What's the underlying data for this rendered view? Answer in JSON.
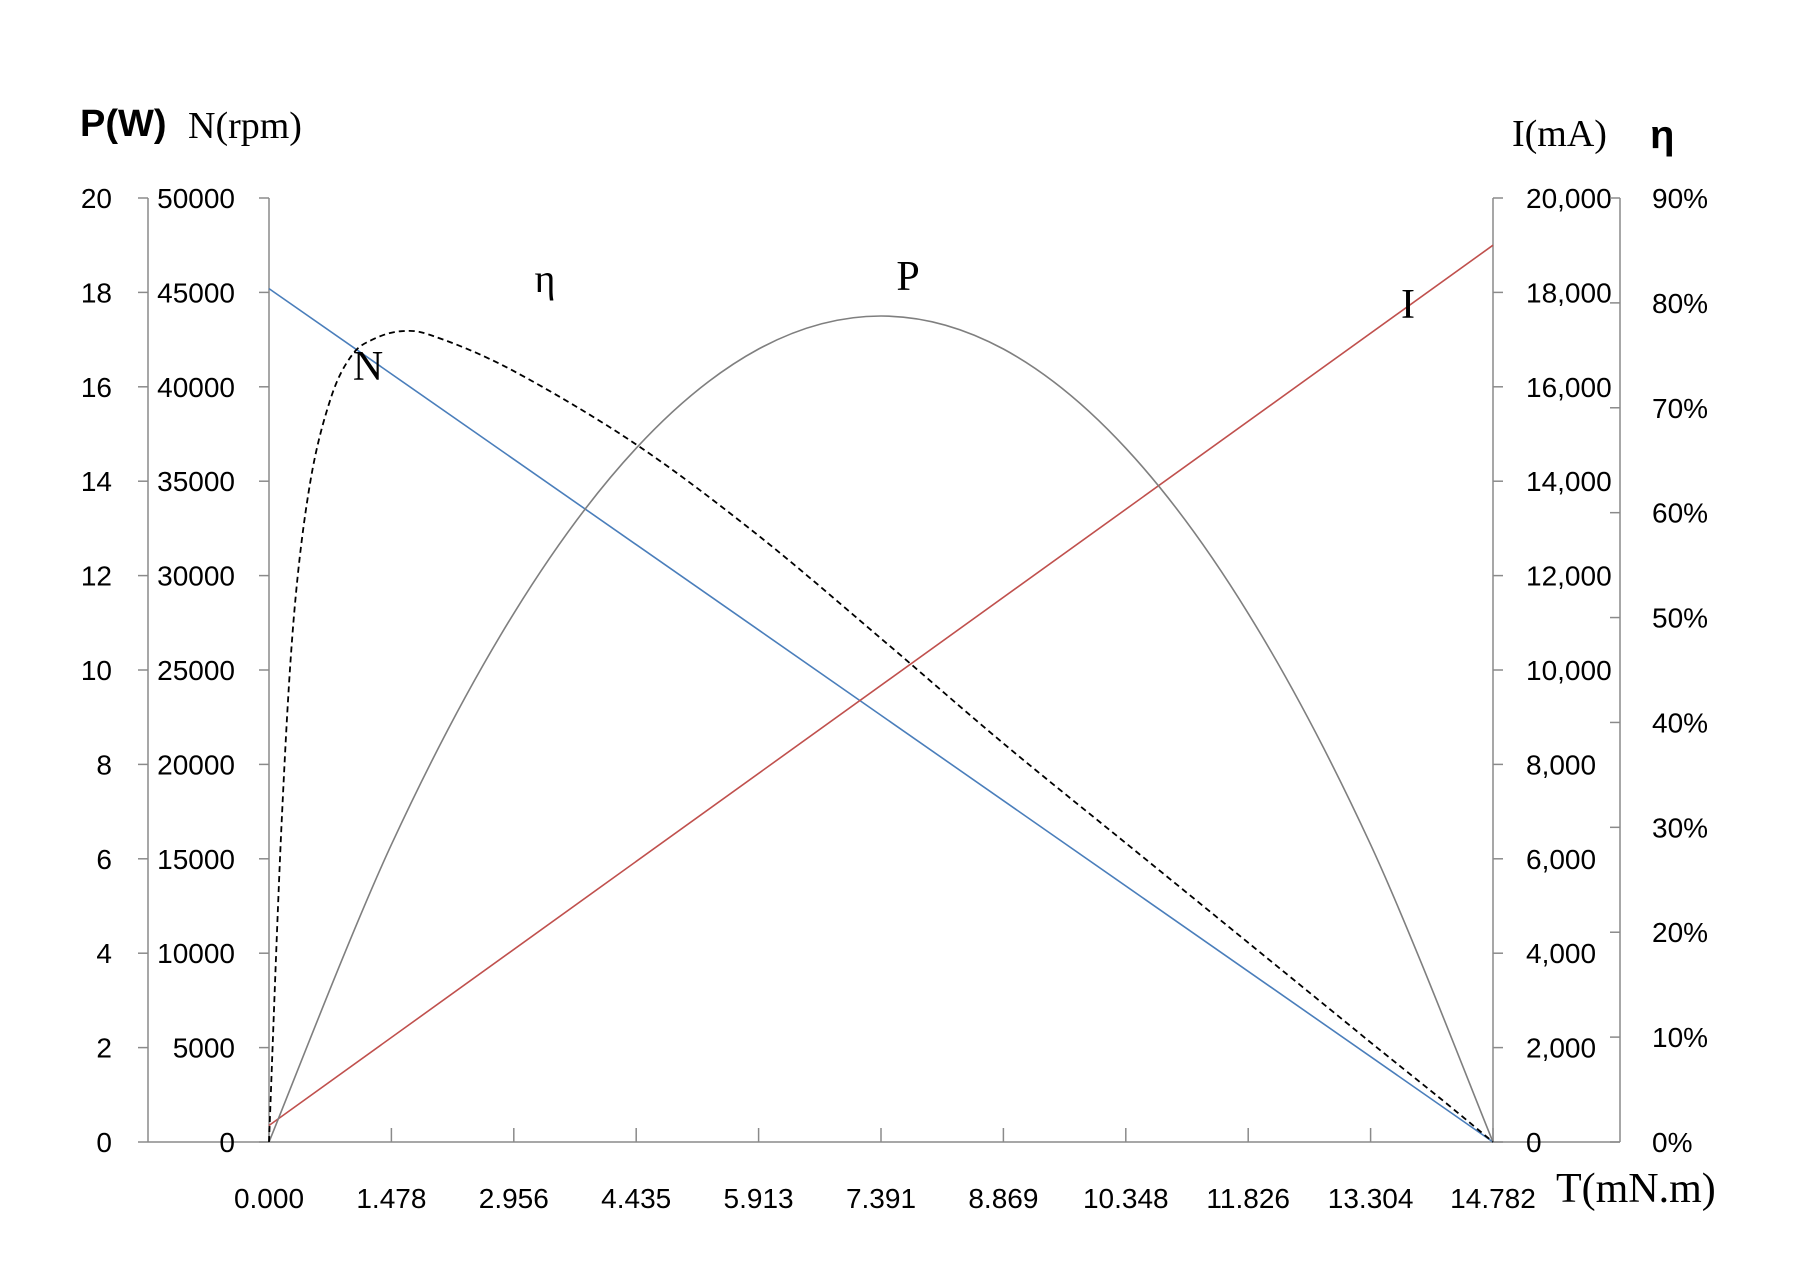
{
  "chart_data": {
    "type": "line",
    "x_label": "T(mN.m)",
    "x_ticks": [
      "0.000",
      "1.478",
      "2.956",
      "4.435",
      "5.913",
      "7.391",
      "8.869",
      "10.348",
      "11.826",
      "13.304",
      "14.782"
    ],
    "x_range": [
      0,
      14.782
    ],
    "left_axis_p": {
      "label": "P(W)",
      "range": [
        0,
        20
      ],
      "ticks": [
        "0",
        "2",
        "4",
        "6",
        "8",
        "10",
        "12",
        "14",
        "16",
        "18",
        "20"
      ]
    },
    "left_axis_n": {
      "label": "N(rpm)",
      "range": [
        0,
        50000
      ],
      "ticks": [
        "0",
        "5000",
        "10000",
        "15000",
        "20000",
        "25000",
        "30000",
        "35000",
        "40000",
        "45000",
        "50000"
      ]
    },
    "right_axis_i": {
      "label": "I(mA)",
      "range": [
        0,
        20000
      ],
      "ticks": [
        "0",
        "2,000",
        "4,000",
        "6,000",
        "8,000",
        "10,000",
        "12,000",
        "14,000",
        "16,000",
        "18,000",
        "20,000"
      ]
    },
    "right_axis_eta": {
      "label": "η",
      "range": [
        0,
        90
      ],
      "ticks": [
        "0%",
        "10%",
        "20%",
        "30%",
        "40%",
        "50%",
        "60%",
        "70%",
        "80%",
        "90%"
      ]
    },
    "series": [
      {
        "name": "N",
        "axis": "left_axis_n",
        "color": "#4a7ebb",
        "style": "solid",
        "x": [
          0,
          14.782
        ],
        "y": [
          45200,
          0
        ]
      },
      {
        "name": "I",
        "axis": "right_axis_i",
        "color": "#c0504d",
        "style": "solid",
        "x": [
          0,
          14.782
        ],
        "y": [
          350,
          19000
        ]
      },
      {
        "name": "P",
        "axis": "left_axis_p",
        "color": "#7f7f7f",
        "style": "solid",
        "x": [
          0,
          1.478,
          2.956,
          4.435,
          5.913,
          7.391,
          8.869,
          10.348,
          11.826,
          13.304,
          14.782
        ],
        "y": [
          0,
          6.3,
          11.2,
          14.7,
          16.8,
          17.5,
          16.8,
          14.7,
          11.2,
          6.3,
          0
        ]
      },
      {
        "name": "η",
        "axis": "right_axis_eta",
        "color": "#000000",
        "style": "dashed",
        "x": [
          0,
          0.15,
          0.3,
          0.5,
          0.75,
          1.0,
          1.25,
          1.6,
          2.0,
          2.956,
          4.435,
          5.913,
          7.391,
          8.869,
          10.348,
          11.826,
          13.304,
          14.2,
          14.782
        ],
        "y": [
          0,
          30,
          50,
          63,
          71,
          75,
          76.5,
          77.3,
          76.8,
          73.5,
          66.5,
          57.8,
          48,
          38,
          28.5,
          19,
          9.5,
          3.8,
          0
        ]
      }
    ],
    "curve_labels": [
      {
        "text": "η",
        "series": "η"
      },
      {
        "text": "P",
        "series": "P"
      },
      {
        "text": "I",
        "series": "I"
      },
      {
        "text": "N",
        "series": "N"
      }
    ],
    "grid": false,
    "legend": "none"
  }
}
